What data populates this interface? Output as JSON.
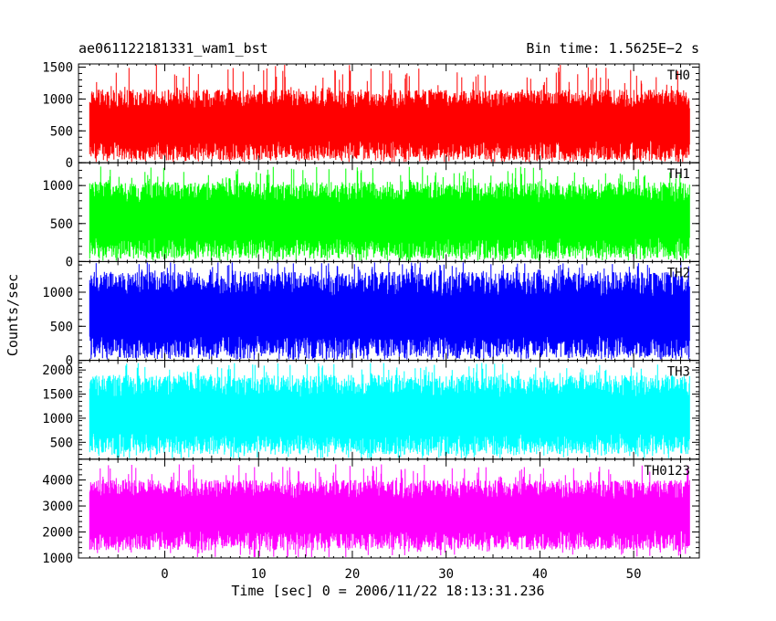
{
  "header": {
    "title_left": "ae061122181331_wam1_bst",
    "title_right": "Bin time: 1.5625E−2 s"
  },
  "chart_data": {
    "type": "line",
    "xlabel": "Time [sec] 0 = 2006/11/22 18:13:31.236",
    "ylabel": "Counts/sec",
    "xlim": [
      -9.2,
      57.0
    ],
    "xticks": [
      0,
      10,
      20,
      30,
      40,
      50
    ],
    "data_x_range": [
      -8.0,
      56.0
    ],
    "panels": [
      {
        "name": "TH0",
        "color": "#ff0000",
        "ylim": [
          0,
          1550
        ],
        "yticks": [
          0,
          500,
          1000,
          1500
        ],
        "base_low": 40,
        "base_high": 1150,
        "peak_max": 1550,
        "mean": 600
      },
      {
        "name": "TH1",
        "color": "#00ff00",
        "ylim": [
          0,
          1300
        ],
        "yticks": [
          0,
          500,
          1000
        ],
        "base_low": 40,
        "base_high": 1050,
        "peak_max": 1250,
        "mean": 550
      },
      {
        "name": "TH2",
        "color": "#0000ff",
        "ylim": [
          0,
          1450
        ],
        "yticks": [
          0,
          500,
          1000
        ],
        "base_low": 30,
        "base_high": 1300,
        "peak_max": 1450,
        "mean": 650
      },
      {
        "name": "TH3",
        "color": "#00ffff",
        "ylim": [
          150,
          2200
        ],
        "yticks": [
          500,
          1000,
          1500,
          2000
        ],
        "base_low": 250,
        "base_high": 1900,
        "peak_max": 2150,
        "mean": 1050
      },
      {
        "name": "TH0123",
        "color": "#ff00ff",
        "ylim": [
          1000,
          4800
        ],
        "yticks": [
          1000,
          2000,
          3000,
          4000
        ],
        "base_low": 1300,
        "base_high": 4000,
        "peak_max": 4600,
        "mean": 2700
      }
    ]
  }
}
